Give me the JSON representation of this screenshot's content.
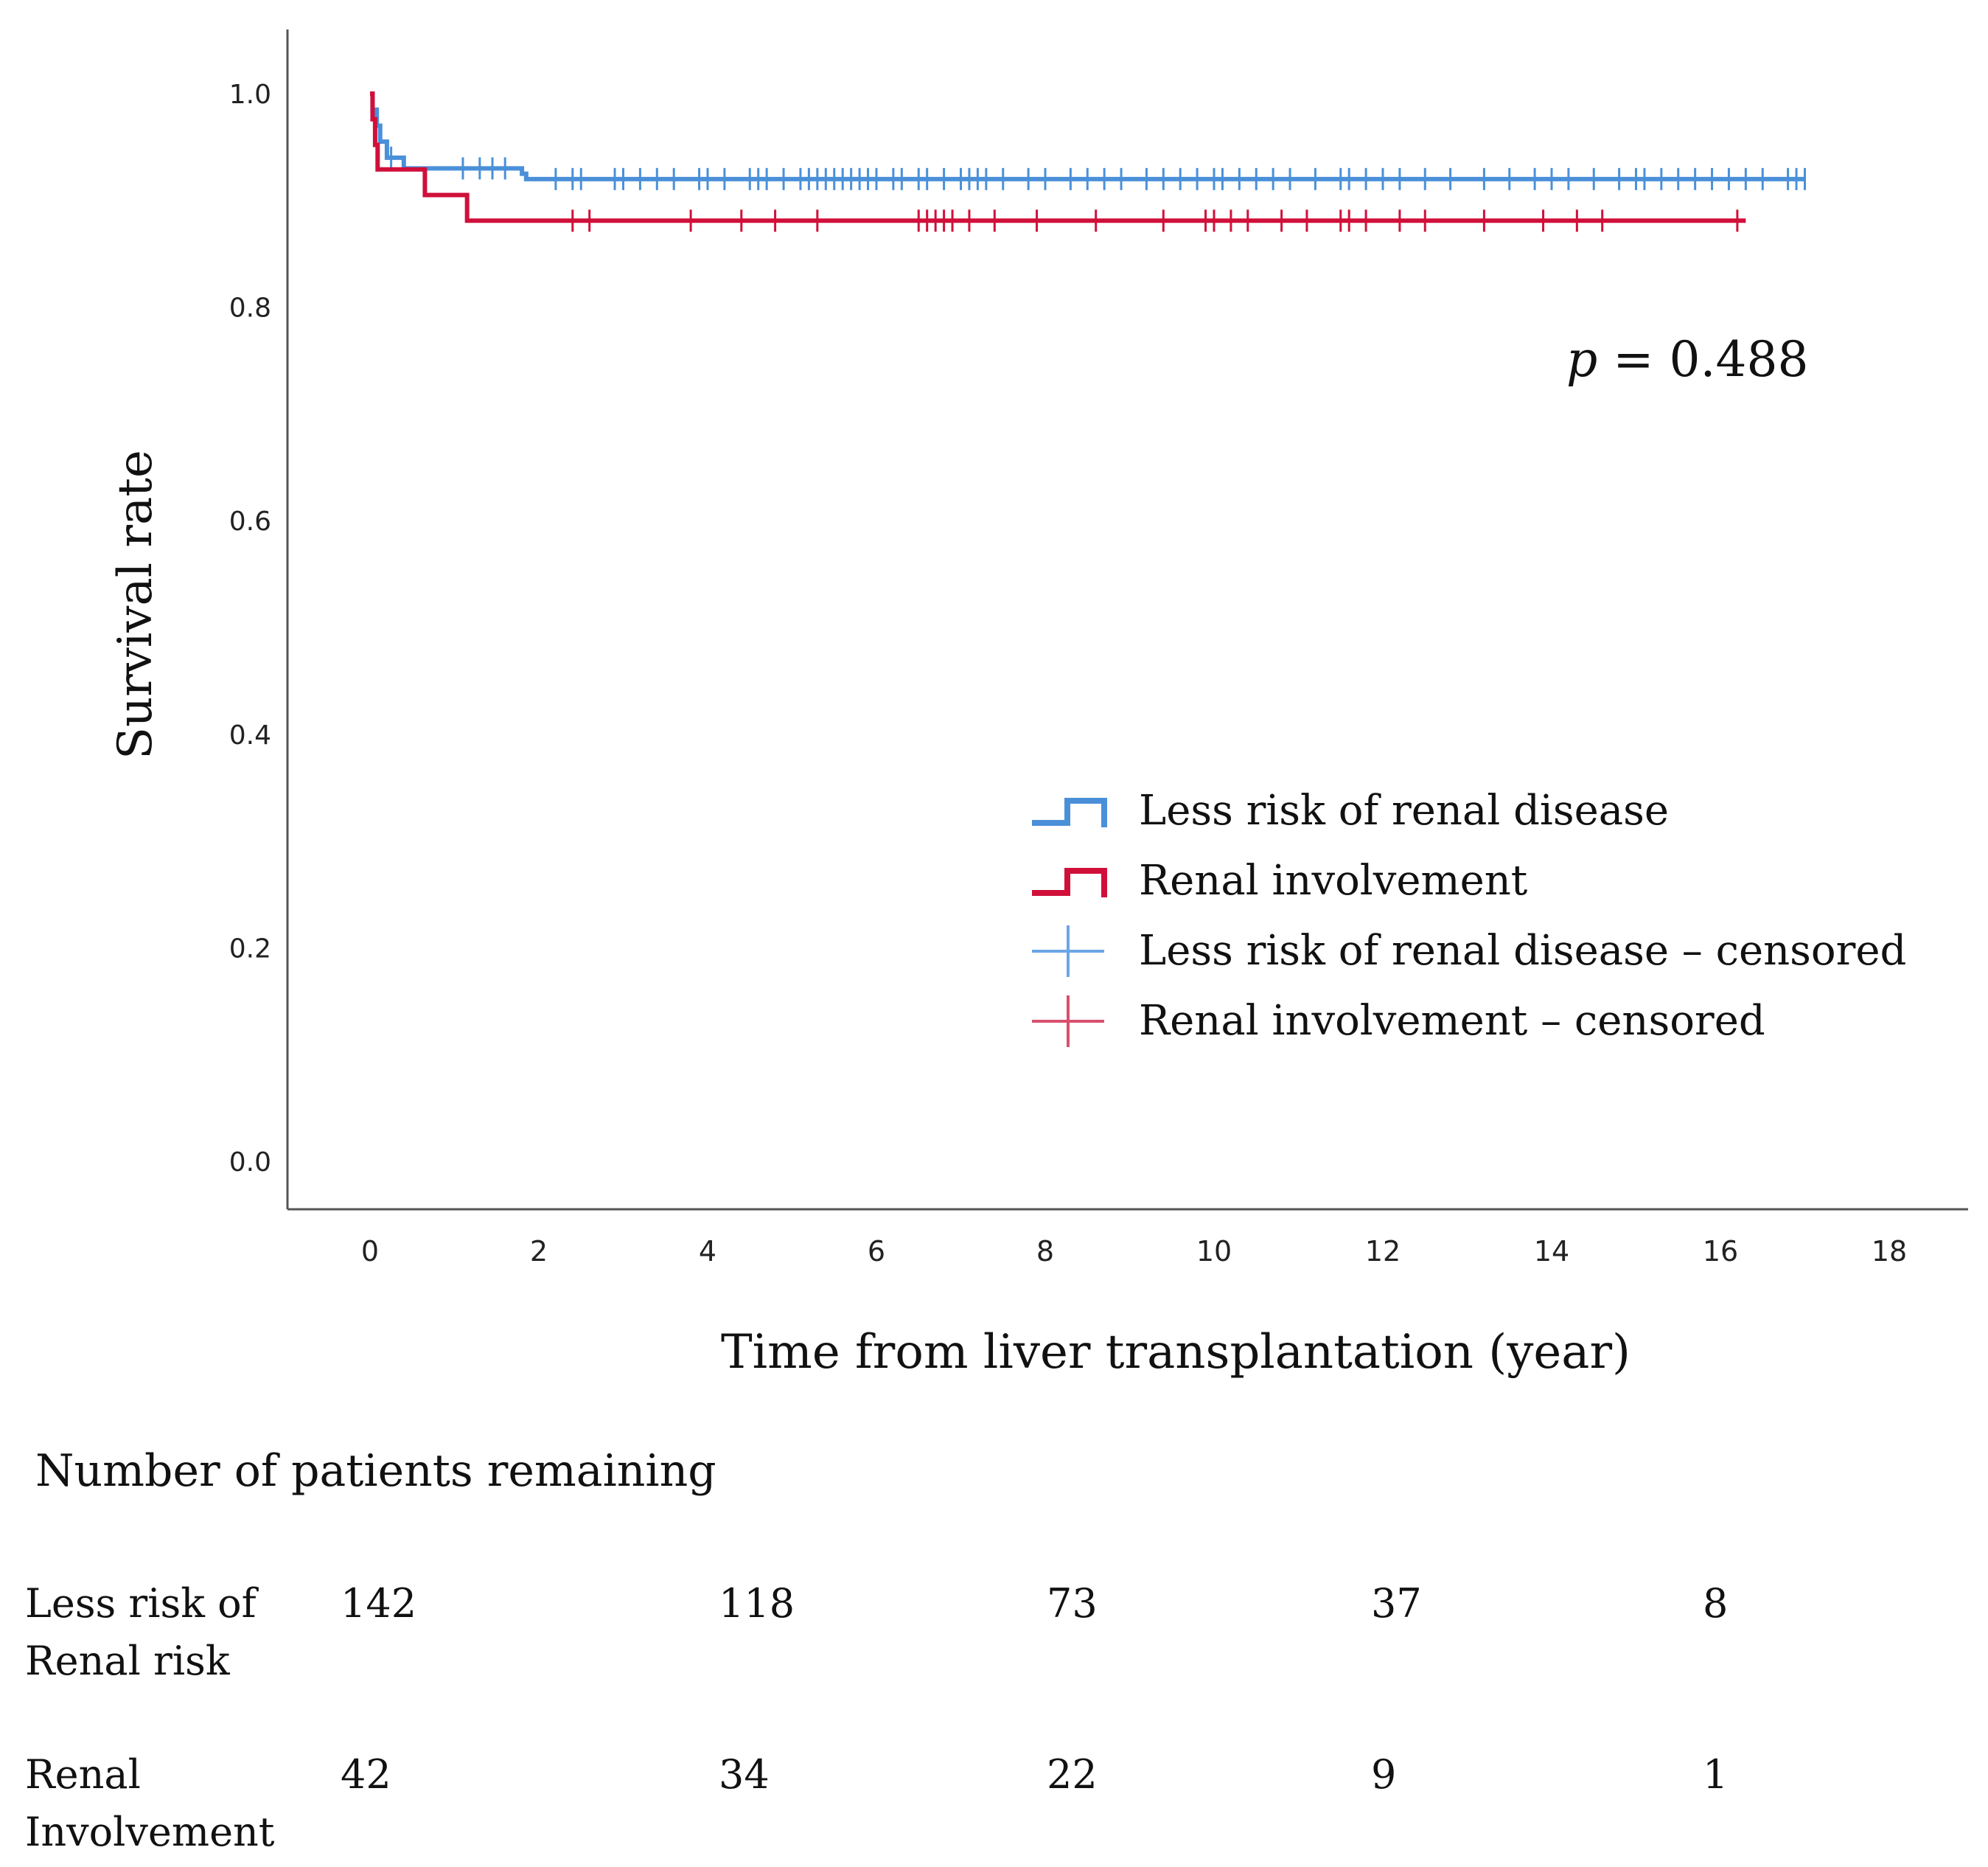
{
  "chart_data": {
    "type": "line",
    "subtype": "kaplan-meier",
    "xlabel": "Time from liver transplantation (year)",
    "ylabel": "Survival rate",
    "xlim": [
      -1,
      19.5
    ],
    "ylim": [
      -0.05,
      1.05
    ],
    "x_ticks": [
      "0",
      "2",
      "4",
      "6",
      "8",
      "10",
      "12",
      "14",
      "16",
      "18"
    ],
    "y_ticks": [
      "0.0",
      "0.2",
      "0.4",
      "0.6",
      "0.8",
      "1.0"
    ],
    "annotation": {
      "italic": "p",
      "rest": " = 0.488"
    },
    "legend": [
      {
        "label": "Less risk of renal disease",
        "kind": "step",
        "color": "#4a90d9"
      },
      {
        "label": "Renal involvement",
        "kind": "step",
        "color": "#d0103a"
      },
      {
        "label": "Less risk of renal disease – censored",
        "kind": "censor",
        "color": "#6aa6e6"
      },
      {
        "label": "Renal involvement – censored",
        "kind": "censor",
        "color": "#d8506e"
      }
    ],
    "series": [
      {
        "name": "Less risk of renal disease",
        "color": "#4a90d9",
        "steps": [
          [
            0,
            1.0
          ],
          [
            0.03,
            0.985
          ],
          [
            0.08,
            0.97
          ],
          [
            0.12,
            0.955
          ],
          [
            0.2,
            0.94
          ],
          [
            0.4,
            0.93
          ],
          [
            1.75,
            0.93
          ],
          [
            1.8,
            0.925
          ],
          [
            1.85,
            0.92
          ],
          [
            17.0,
            0.92
          ]
        ],
        "censored": [
          0.25,
          1.1,
          1.3,
          1.45,
          1.6,
          2.2,
          2.4,
          2.5,
          2.9,
          3.0,
          3.2,
          3.4,
          3.6,
          3.9,
          4.0,
          4.2,
          4.5,
          4.6,
          4.7,
          4.9,
          5.1,
          5.2,
          5.3,
          5.4,
          5.5,
          5.6,
          5.7,
          5.8,
          5.9,
          6.0,
          6.2,
          6.3,
          6.5,
          6.6,
          6.8,
          7.0,
          7.1,
          7.2,
          7.3,
          7.5,
          7.8,
          8.0,
          8.3,
          8.5,
          8.7,
          8.9,
          9.2,
          9.4,
          9.6,
          9.8,
          10.0,
          10.1,
          10.3,
          10.5,
          10.7,
          10.9,
          11.2,
          11.5,
          11.6,
          11.8,
          12.0,
          12.2,
          12.5,
          12.8,
          13.2,
          13.5,
          13.8,
          14.0,
          14.2,
          14.5,
          14.8,
          15.0,
          15.1,
          15.3,
          15.5,
          15.7,
          15.9,
          16.1,
          16.3,
          16.5,
          16.8,
          16.9,
          17.0
        ]
      },
      {
        "name": "Renal involvement",
        "color": "#d0103a",
        "steps": [
          [
            0,
            1.0
          ],
          [
            0.03,
            0.976
          ],
          [
            0.06,
            0.952
          ],
          [
            0.09,
            0.929
          ],
          [
            0.6,
            0.929
          ],
          [
            0.65,
            0.905
          ],
          [
            1.1,
            0.905
          ],
          [
            1.15,
            0.881
          ],
          [
            16.3,
            0.881
          ]
        ],
        "censored": [
          2.4,
          2.6,
          3.8,
          4.4,
          4.8,
          5.3,
          6.5,
          6.6,
          6.7,
          6.8,
          6.9,
          7.1,
          7.4,
          7.9,
          8.6,
          9.4,
          9.9,
          10.0,
          10.2,
          10.4,
          10.8,
          11.1,
          11.5,
          11.6,
          11.8,
          12.2,
          12.5,
          13.2,
          13.9,
          14.3,
          14.6,
          16.2
        ]
      }
    ],
    "risk_table": {
      "title": "Number of patients remaining",
      "rows": [
        {
          "label_line1": "Less risk of",
          "label_line2": "Renal risk",
          "values": [
            "142",
            "118",
            "73",
            "37",
            "8"
          ]
        },
        {
          "label_line1": "Renal",
          "label_line2": "Involvement",
          "values": [
            "42",
            "34",
            "22",
            "9",
            "1"
          ]
        }
      ]
    }
  }
}
